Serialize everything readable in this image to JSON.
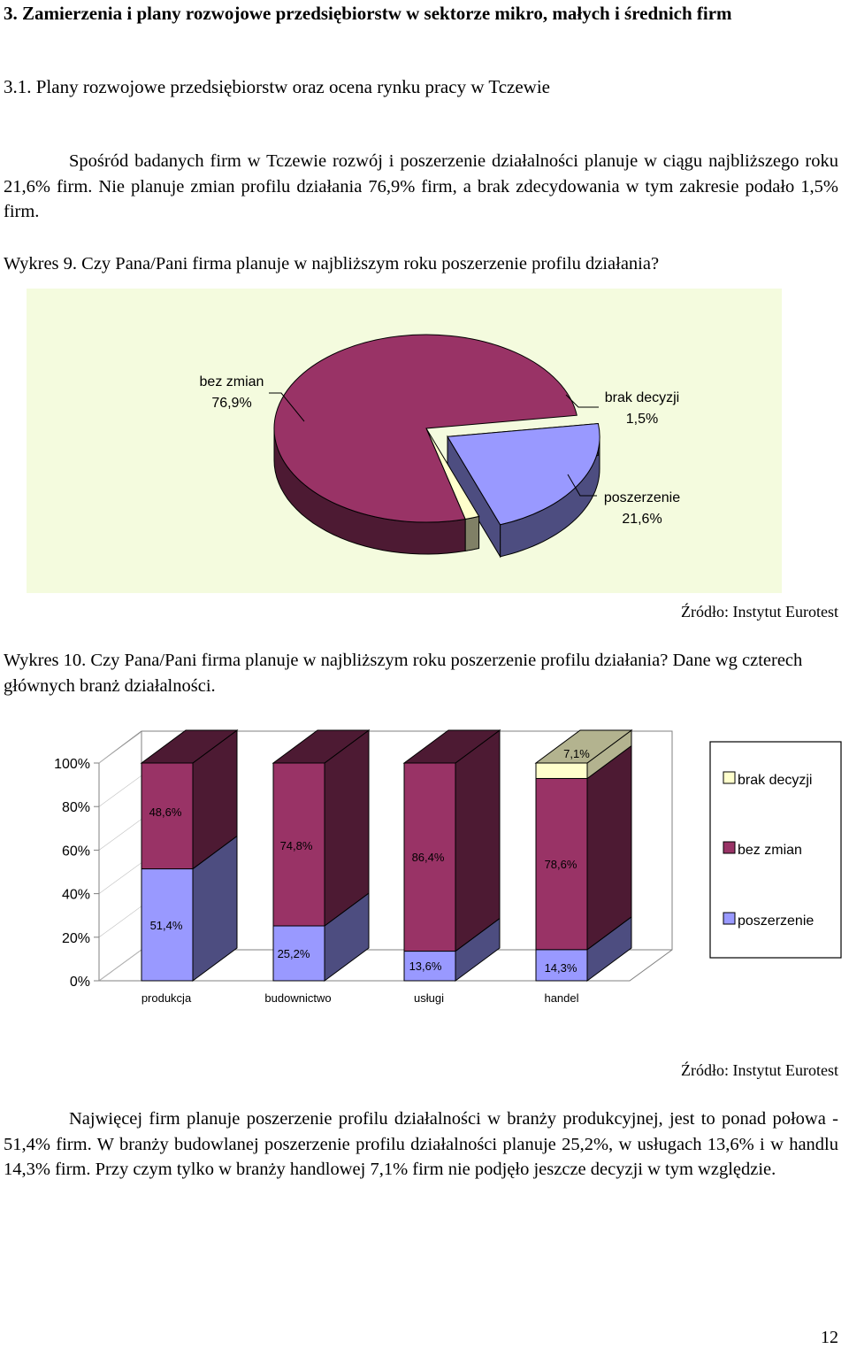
{
  "heading": "3. Zamierzenia i plany rozwojowe przedsiębiorstw w sektorze mikro, małych i średnich firm",
  "subheading": "3.1. Plany rozwojowe  przedsiębiorstw oraz ocena rynku pracy w Tczewie",
  "intro_paragraph": "Spośród badanych firm w Tczewie  rozwój  i  poszerzenie działalności planuje w ciągu najbliższego roku 21,6% firm. Nie planuje zmian profilu działania 76,9% firm, a brak zdecydowania w tym zakresie podało 1,5% firm.",
  "chart1_caption": "Wykres 9.  Czy Pana/Pani firma planuje w najbliższym roku  poszerzenie profilu działania?",
  "chart1_source": "Źródło: Instytut Eurotest",
  "chart2_caption": "Wykres 10.  Czy Pana/Pani firma planuje w najbliższym roku  poszerzenie profilu działania? Dane wg czterech głównych branż działalności.",
  "chart2_source": "Źródło: Instytut Eurotest",
  "closing_paragraph": "Najwięcej firm planuje poszerzenie profilu działalności  w branży produkcyjnej, jest to ponad połowa - 51,4% firm. W branży budowlanej poszerzenie profilu działalności planuje 25,2%, w usługach 13,6% i w handlu 14,3% firm.  Przy czym tylko w branży handlowej 7,1% firm nie podjęło jeszcze decyzji w tym względzie.",
  "page_number": "12",
  "colors": {
    "bez_zmian": "#993366",
    "bez_zmian_dark": "#4d1a33",
    "poszerzenie": "#9999ff",
    "poszerzenie_dark": "#4d4d80",
    "brak_decyzji": "#ffffcc",
    "brak_decyzji_dark": "#808066",
    "pie_background": "#f4fbde"
  },
  "chart_data": [
    {
      "type": "pie",
      "three_d": true,
      "slices": [
        {
          "label": "bez zmian",
          "value": 76.9,
          "value_label": "76,9%",
          "color": "#993366"
        },
        {
          "label": "brak decyzji",
          "value": 1.5,
          "value_label": "1,5%",
          "color": "#ffffcc"
        },
        {
          "label": "poszerzenie",
          "value": 21.6,
          "value_label": "21,6%",
          "color": "#9999ff",
          "exploded": true
        }
      ]
    },
    {
      "type": "bar",
      "stacked": true,
      "percent": true,
      "three_d": true,
      "categories": [
        "produkcja",
        "budownictwo",
        "usługi",
        "handel"
      ],
      "series": [
        {
          "name": "poszerzenie",
          "values": [
            51.4,
            25.2,
            13.6,
            14.3
          ],
          "value_labels": [
            "51,4%",
            "25,2%",
            "13,6%",
            "14,3%"
          ],
          "color": "#9999ff"
        },
        {
          "name": "bez zmian",
          "values": [
            48.6,
            74.8,
            86.4,
            78.6
          ],
          "value_labels": [
            "48,6%",
            "74,8%",
            "86,4%",
            "78,6%"
          ],
          "color": "#993366"
        },
        {
          "name": "brak decyzji",
          "values": [
            0,
            0,
            0,
            7.1
          ],
          "value_labels": [
            "",
            "",
            "",
            "7,1%"
          ],
          "color": "#ffffcc"
        }
      ],
      "y_ticks": [
        "0%",
        "20%",
        "40%",
        "60%",
        "80%",
        "100%"
      ],
      "ylim": [
        0,
        100
      ],
      "legend_position": "right",
      "legend_order": [
        "brak decyzji",
        "bez zmian",
        "poszerzenie"
      ]
    }
  ]
}
